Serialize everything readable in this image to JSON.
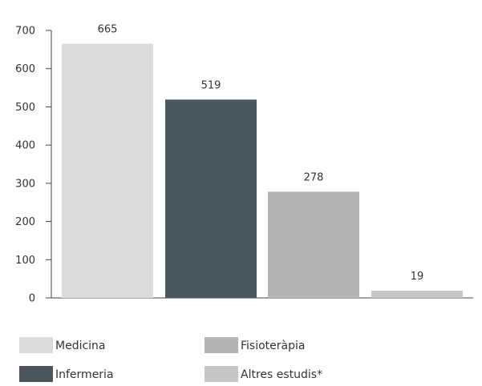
{
  "chart_data": {
    "type": "bar",
    "categories": [
      "Medicina",
      "Infermeria",
      "Fisioteràpia",
      "Altres estudis*"
    ],
    "values": [
      665,
      519,
      278,
      19
    ],
    "data_labels": [
      "665",
      "519",
      "278",
      "19"
    ],
    "colors": [
      "#d9dbdc",
      "#4c575b",
      "#b2b4b6",
      "#c4c6c7"
    ],
    "ylim": [
      0,
      700
    ],
    "yticks": [
      0,
      100,
      200,
      300,
      400,
      500,
      600,
      700
    ],
    "ytick_labels": [
      "0",
      "100",
      "200",
      "300",
      "400",
      "500",
      "600",
      "700"
    ],
    "grid": false,
    "legend_position": "bottom",
    "title": "",
    "xlabel": "",
    "ylabel": ""
  }
}
